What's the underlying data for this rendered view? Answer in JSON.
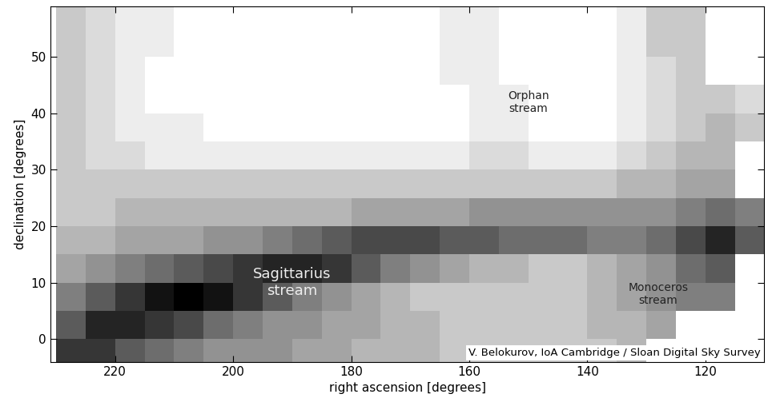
{
  "chart_data": {
    "type": "heatmap",
    "xlabel": "right ascension [degrees]",
    "ylabel": "declination [degrees]",
    "xlim": [
      231,
      110
    ],
    "ylim": [
      -4,
      59
    ],
    "xticks": [
      220,
      200,
      180,
      160,
      140,
      120
    ],
    "yticks": [
      0,
      10,
      20,
      30,
      40,
      50
    ],
    "annotations": [
      "Orphan\nstream",
      "Sagittarius\nstream",
      "Monoceros\nstream",
      "V. Belokurov, IoA Cambridge / Sloan Digital Sky Survey"
    ],
    "ra_edges": [
      230,
      225,
      220,
      215,
      210,
      205,
      200,
      195,
      190,
      185,
      180,
      175,
      170,
      165,
      160,
      155,
      150,
      145,
      140,
      135,
      130,
      125,
      120,
      115,
      110
    ],
    "dec_edges": [
      -5,
      0,
      5,
      10,
      15,
      20,
      25,
      30,
      35,
      40,
      45,
      50,
      55,
      60
    ],
    "cells": [
      [
        0.7,
        0.7,
        0.6,
        0.55,
        0.5,
        0.45,
        0.45,
        0.45,
        0.4,
        0.4,
        0.35,
        0.35,
        0.35,
        0.3,
        0.3,
        0.3,
        0.3,
        0.3,
        0.3,
        0.35,
        null,
        null,
        null,
        null
      ],
      [
        0.6,
        0.75,
        0.75,
        0.7,
        0.65,
        0.55,
        0.5,
        0.45,
        0.45,
        0.4,
        0.4,
        0.35,
        0.35,
        0.3,
        0.3,
        0.3,
        0.3,
        0.3,
        0.35,
        0.35,
        0.4,
        null,
        null,
        null
      ],
      [
        0.5,
        0.6,
        0.7,
        0.8,
        0.85,
        0.8,
        0.7,
        0.6,
        0.5,
        0.45,
        0.4,
        0.35,
        0.3,
        0.3,
        0.3,
        0.3,
        0.3,
        0.3,
        0.35,
        0.4,
        0.45,
        0.5,
        0.5,
        null
      ],
      [
        0.4,
        0.45,
        0.5,
        0.55,
        0.6,
        0.65,
        0.7,
        0.75,
        0.75,
        0.7,
        0.6,
        0.5,
        0.45,
        0.4,
        0.35,
        0.35,
        0.3,
        0.3,
        0.35,
        0.4,
        0.45,
        0.55,
        0.6,
        null
      ],
      [
        0.35,
        0.35,
        0.4,
        0.4,
        0.4,
        0.45,
        0.45,
        0.5,
        0.55,
        0.6,
        0.65,
        0.65,
        0.65,
        0.6,
        0.6,
        0.55,
        0.55,
        0.55,
        0.5,
        0.5,
        0.55,
        0.65,
        0.75,
        0.6
      ],
      [
        0.3,
        0.3,
        0.35,
        0.35,
        0.35,
        0.35,
        0.35,
        0.35,
        0.35,
        0.35,
        0.4,
        0.4,
        0.4,
        0.4,
        0.45,
        0.45,
        0.45,
        0.45,
        0.45,
        0.45,
        0.45,
        0.5,
        0.55,
        0.5
      ],
      [
        0.3,
        0.3,
        0.3,
        0.3,
        0.3,
        0.3,
        0.3,
        0.3,
        0.3,
        0.3,
        0.3,
        0.3,
        0.3,
        0.3,
        0.3,
        0.3,
        0.3,
        0.3,
        0.3,
        0.35,
        0.35,
        0.4,
        0.4,
        null
      ],
      [
        0.3,
        0.25,
        0.25,
        0.2,
        0.2,
        0.2,
        0.2,
        0.2,
        0.2,
        0.2,
        0.2,
        0.2,
        0.2,
        0.2,
        0.25,
        0.25,
        0.2,
        0.2,
        0.2,
        0.25,
        0.3,
        0.35,
        0.35,
        null
      ],
      [
        0.3,
        0.25,
        0.2,
        0.2,
        0.2,
        0.15,
        0.15,
        0.15,
        0.15,
        0.15,
        0.15,
        0.15,
        0.15,
        0.15,
        0.2,
        0.2,
        0.15,
        0.15,
        0.15,
        0.2,
        0.25,
        0.3,
        0.35,
        0.3
      ],
      [
        0.3,
        0.25,
        0.2,
        0.15,
        0.15,
        0.15,
        0.15,
        0.15,
        0.15,
        0.15,
        0.15,
        0.15,
        0.15,
        0.15,
        0.2,
        0.2,
        0.15,
        0.15,
        0.15,
        0.2,
        0.25,
        0.3,
        0.3,
        0.25
      ],
      [
        0.3,
        0.25,
        0.2,
        0.15,
        0.15,
        0.15,
        0.15,
        0.15,
        0.15,
        0.15,
        0.15,
        0.15,
        0.15,
        0.2,
        0.2,
        0.15,
        0.15,
        0.15,
        0.15,
        0.2,
        0.25,
        0.3,
        null,
        null
      ],
      [
        0.3,
        0.25,
        0.2,
        0.2,
        0.15,
        0.15,
        0.15,
        0.15,
        0.15,
        0.15,
        0.15,
        0.15,
        0.15,
        0.2,
        0.2,
        0.15,
        0.15,
        0.15,
        0.15,
        0.2,
        0.3,
        0.3,
        null,
        null
      ],
      [
        0.3,
        0.25,
        0.2,
        0.2,
        0.15,
        0.15,
        0.15,
        0.15,
        0.15,
        0.15,
        0.15,
        0.15,
        0.15,
        0.2,
        0.2,
        0.15,
        0.15,
        0.15,
        0.15,
        0.2,
        0.3,
        0.3,
        null,
        null
      ]
    ]
  }
}
